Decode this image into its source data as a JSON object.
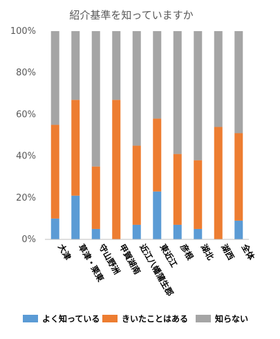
{
  "chart_data": {
    "type": "bar",
    "stacked": true,
    "title": "紹介基準を知っていますか",
    "categories": [
      "大津",
      "草津・栗東",
      "守山野洲",
      "甲賀湖南",
      "近江八幡蒲生郡",
      "東近江",
      "彦根",
      "湖北",
      "湖西",
      "全体"
    ],
    "y_ticks": [
      "0%",
      "20%",
      "40%",
      "60%",
      "80%",
      "100%"
    ],
    "ylim": [
      0,
      100
    ],
    "grid": false,
    "legend_position": "bottom",
    "series": [
      {
        "name": "よく知っている",
        "color": "#5b9bd5",
        "values": [
          10,
          21,
          5,
          0,
          7,
          23,
          7,
          5,
          0,
          9
        ]
      },
      {
        "name": "きいたことはある",
        "color": "#ed7d31",
        "values": [
          45,
          46,
          30,
          67,
          38,
          35,
          34,
          33,
          54,
          42
        ]
      },
      {
        "name": "知らない",
        "color": "#a5a5a5",
        "values": [
          45,
          33,
          65,
          33,
          55,
          42,
          59,
          62,
          46,
          49
        ]
      }
    ]
  }
}
